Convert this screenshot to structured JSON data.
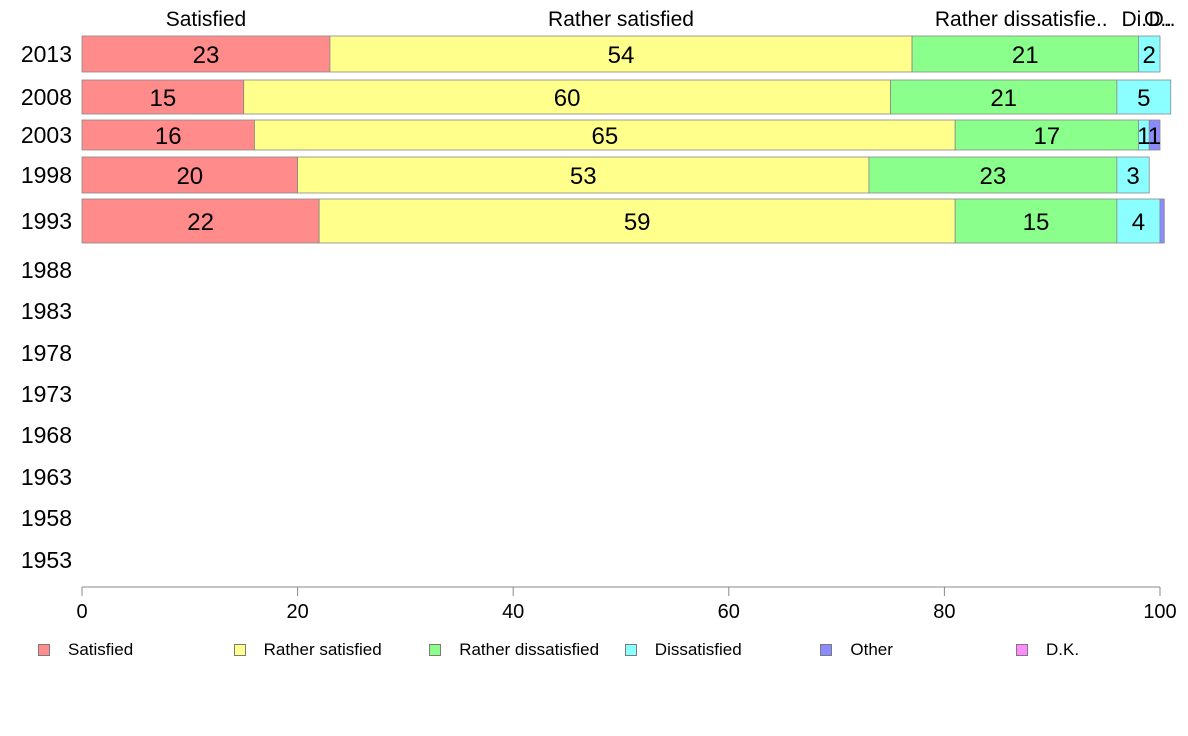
{
  "chart_data": {
    "type": "bar",
    "orientation": "horizontal",
    "stacked": true,
    "categories": [
      "2013",
      "2008",
      "2003",
      "1998",
      "1993",
      "1988",
      "1983",
      "1978",
      "1973",
      "1968",
      "1963",
      "1958",
      "1953"
    ],
    "series": [
      {
        "name": "Satisfied",
        "color": "#ff8b8b",
        "values": [
          23,
          15,
          16,
          20,
          22,
          null,
          null,
          null,
          null,
          null,
          null,
          null,
          null
        ]
      },
      {
        "name": "Rather satisfied",
        "color": "#ffff8b",
        "values": [
          54,
          60,
          65,
          53,
          59,
          null,
          null,
          null,
          null,
          null,
          null,
          null,
          null
        ]
      },
      {
        "name": "Rather dissatisfied",
        "color": "#8bff8b",
        "values": [
          21,
          21,
          17,
          23,
          15,
          null,
          null,
          null,
          null,
          null,
          null,
          null,
          null
        ]
      },
      {
        "name": "Dissatisfied",
        "color": "#8bffff",
        "values": [
          2,
          5,
          1,
          3,
          4,
          null,
          null,
          null,
          null,
          null,
          null,
          null,
          null
        ]
      },
      {
        "name": "Other",
        "color": "#8b8bff",
        "values": [
          0,
          0,
          1,
          0,
          0.4,
          null,
          null,
          null,
          null,
          null,
          null,
          null,
          null
        ]
      },
      {
        "name": "D.K.",
        "color": "#ff8bff",
        "values": [
          0,
          0,
          0,
          0,
          0,
          null,
          null,
          null,
          null,
          null,
          null,
          null,
          null
        ]
      }
    ],
    "top_labels": [
      "Satisfied",
      "Rather satisfied",
      "Rather dissatisfie..",
      "Di..",
      "O..",
      "D.."
    ],
    "xlim": [
      0,
      100
    ],
    "xticks": [
      "0",
      "20",
      "40",
      "60",
      "80",
      "100"
    ],
    "grid": false,
    "legend_position": "bottom",
    "legend": [
      "Satisfied",
      "Rather satisfied",
      "Rather dissatisfied",
      "Dissatisfied",
      "Other",
      "D.K."
    ]
  }
}
